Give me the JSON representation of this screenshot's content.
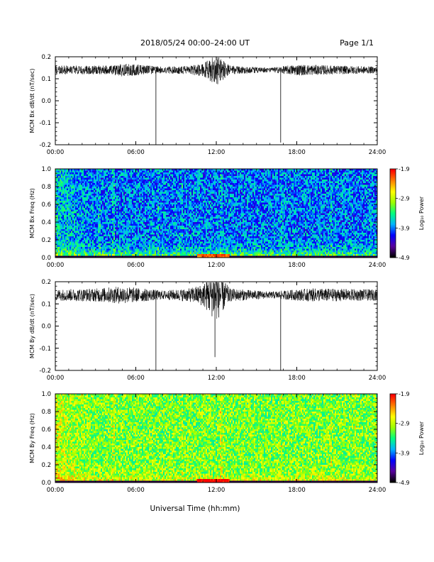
{
  "header": {
    "title": "2018/05/24  00:00–24:00 UT",
    "page": "Page 1/1"
  },
  "x_axis_label": "Universal Time (hh:mm)",
  "colorbar": {
    "label": "Log₁₀ Power",
    "ticks": [
      "-1.9",
      "-2.9",
      "-3.9",
      "-4.9"
    ],
    "range": [
      -4.9,
      -1.9
    ],
    "colors": [
      "#000000",
      "#5a00a0",
      "#0000ff",
      "#00b4ff",
      "#00ff80",
      "#9cff00",
      "#ffff00",
      "#ff8000",
      "#ff0000"
    ]
  },
  "chart_data": [
    {
      "type": "line",
      "name": "Bx time series",
      "ylabel": "MCM Bx dB/dt (nT/sec)",
      "xlim": [
        0,
        24
      ],
      "ylim": [
        -0.2,
        0.2
      ],
      "x_ticks": [
        "00:00",
        "06:00",
        "12:00",
        "18:00",
        "24:00"
      ],
      "y_ticks": [
        "-0.2",
        "-0.1",
        "0.0",
        "0.1",
        "0.2"
      ],
      "baseline": 0.14,
      "noise_envelope": [
        {
          "x": 0,
          "amp": 0.02
        },
        {
          "x": 4,
          "amp": 0.02
        },
        {
          "x": 5,
          "amp": 0.03
        },
        {
          "x": 8,
          "amp": 0.015
        },
        {
          "x": 10,
          "amp": 0.02
        },
        {
          "x": 11,
          "amp": 0.03
        },
        {
          "x": 12,
          "amp": 0.07
        },
        {
          "x": 13,
          "amp": 0.02
        },
        {
          "x": 16,
          "amp": 0.01
        },
        {
          "x": 18,
          "amp": 0.025
        },
        {
          "x": 24,
          "amp": 0.015
        }
      ],
      "spikes": [
        {
          "x": 7.5,
          "y": -0.2
        },
        {
          "x": 16.8,
          "y": -0.19
        }
      ]
    },
    {
      "type": "heatmap",
      "name": "Bx spectrogram",
      "ylabel": "MCM Bx Freq (Hz)",
      "xlim": [
        0,
        24
      ],
      "ylim": [
        0,
        1.0
      ],
      "x_ticks": [
        "00:00",
        "06:00",
        "12:00",
        "18:00",
        "24:00"
      ],
      "y_ticks": [
        "0.0",
        "0.2",
        "0.4",
        "0.6",
        "0.8",
        "1.0"
      ],
      "value_range": [
        -4.9,
        -1.9
      ],
      "background_level": -3.9,
      "low_freq_level": -2.9,
      "horizontal_bands_hz": [
        0.14,
        0.22,
        0.28,
        0.36,
        0.44,
        0.5,
        0.58,
        0.66,
        0.74,
        0.82,
        0.88,
        0.96
      ],
      "vertical_bands_hr": [
        3.2,
        4.3,
        7.6,
        9.4,
        12.3,
        16.8,
        20.5
      ]
    },
    {
      "type": "line",
      "name": "By time series",
      "ylabel": "MCM By dB/dt (nT/sec)",
      "xlim": [
        0,
        24
      ],
      "ylim": [
        -0.2,
        0.2
      ],
      "x_ticks": [
        "00:00",
        "06:00",
        "12:00",
        "18:00",
        "24:00"
      ],
      "y_ticks": [
        "-0.2",
        "-0.1",
        "0.0",
        "0.1",
        "0.2"
      ],
      "baseline": 0.14,
      "noise_envelope": [
        {
          "x": 0,
          "amp": 0.025
        },
        {
          "x": 3,
          "amp": 0.03
        },
        {
          "x": 5,
          "amp": 0.04
        },
        {
          "x": 8,
          "amp": 0.02
        },
        {
          "x": 10,
          "amp": 0.03
        },
        {
          "x": 11,
          "amp": 0.05
        },
        {
          "x": 12,
          "amp": 0.12
        },
        {
          "x": 13,
          "amp": 0.03
        },
        {
          "x": 16,
          "amp": 0.015
        },
        {
          "x": 19,
          "amp": 0.03
        },
        {
          "x": 24,
          "amp": 0.025
        }
      ],
      "spikes": [
        {
          "x": 7.5,
          "y": -0.2
        },
        {
          "x": 11.9,
          "y": -0.14
        },
        {
          "x": 16.8,
          "y": -0.2
        }
      ]
    },
    {
      "type": "heatmap",
      "name": "By spectrogram",
      "ylabel": "MCM By Freq (Hz)",
      "xlim": [
        0,
        24
      ],
      "ylim": [
        0,
        1.0
      ],
      "x_ticks": [
        "00:00",
        "06:00",
        "12:00",
        "18:00",
        "24:00"
      ],
      "y_ticks": [
        "0.0",
        "0.2",
        "0.4",
        "0.6",
        "0.8",
        "1.0"
      ],
      "value_range": [
        -4.9,
        -1.9
      ],
      "background_level": -3.1,
      "low_freq_level": -2.6,
      "horizontal_bands_hz": [
        0.14,
        0.22,
        0.28,
        0.36,
        0.44,
        0.5,
        0.58,
        0.66,
        0.74,
        0.82,
        0.88,
        0.96
      ],
      "vertical_bands_hr": [
        4.3,
        9.4,
        12.3,
        16.8,
        20.5,
        22.3
      ]
    }
  ]
}
